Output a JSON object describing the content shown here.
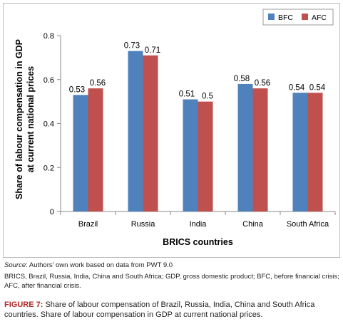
{
  "chart_data": {
    "type": "bar",
    "categories": [
      "Brazil",
      "Russia",
      "India",
      "China",
      "South Africa"
    ],
    "series": [
      {
        "name": "BFC",
        "values": [
          0.53,
          0.73,
          0.51,
          0.58,
          0.54
        ],
        "labels": [
          "0.53",
          "0.73",
          "0.51",
          "0.58",
          "0.54"
        ],
        "color": "#4f81bd"
      },
      {
        "name": "AFC",
        "values": [
          0.56,
          0.71,
          0.5,
          0.56,
          0.54
        ],
        "labels": [
          "0.56",
          "0.71",
          "0.5",
          "0.56",
          "0.54"
        ],
        "color": "#c0504d"
      }
    ],
    "xlabel": "BRICS countries",
    "ylabel": [
      "Share of labour compensation in GDP",
      "at current national prices"
    ],
    "ylim": [
      0,
      0.8
    ],
    "yticks": [
      0,
      0.2,
      0.4,
      0.6,
      0.8
    ],
    "ytick_labels": [
      "0",
      "0.2",
      "0.4",
      "0.6",
      "0.8"
    ],
    "grid": false,
    "legend": "top-right"
  },
  "notes": {
    "source_label": "Source",
    "source_text": ": Authors’ own work based on data from PWT 9.0",
    "abbreviations": "BRICS, Brazil, Russia, India, China and South Africa; GDP, gross domestic product; BFC, before financial crisis; AFC, after financial crisis."
  },
  "caption": {
    "prefix": "FIGURE 7:",
    "text": " Share of labour compensation of Brazil, Russia, India, China and South Africa countries. Share of labour compensation in GDP at current national prices."
  }
}
